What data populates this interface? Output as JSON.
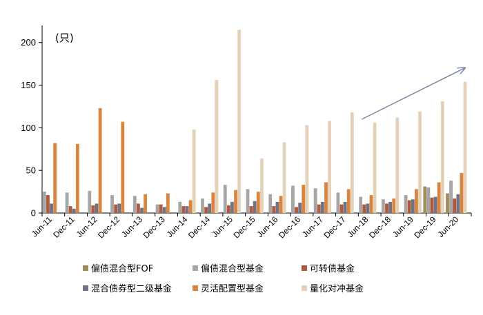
{
  "chart_data": {
    "type": "bar",
    "unit_label": "(只)",
    "categories": [
      "Jun-11",
      "Dec-11",
      "Jun-12",
      "Dec-12",
      "Jun-13",
      "Dec-13",
      "Jun-14",
      "Dec-14",
      "Jun-15",
      "Dec-15",
      "Jun-16",
      "Dec-16",
      "Jun-17",
      "Dec-17",
      "Jun-18",
      "Dec-18",
      "Jun-19",
      "Dec-19",
      "Jun-20"
    ],
    "ylim": [
      0,
      220
    ],
    "yticks": [
      0,
      50,
      100,
      150,
      200
    ],
    "grid": false,
    "legend_position": "bottom",
    "series": [
      {
        "name": "偏债混合型FOF",
        "color": "#a08c5a",
        "values": [
          0,
          0,
          0,
          0,
          0,
          0,
          0,
          0,
          0,
          0,
          0,
          0,
          0,
          0,
          0,
          0,
          0,
          31,
          23
        ]
      },
      {
        "name": "偏债混合型基金",
        "color": "#a6a6a6",
        "values": [
          25,
          24,
          26,
          21,
          20,
          10,
          13,
          17,
          33,
          28,
          22,
          32,
          29,
          24,
          19,
          16,
          21,
          30,
          38
        ]
      },
      {
        "name": "可转债基金",
        "color": "#b05a3c",
        "values": [
          21,
          8,
          9,
          10,
          11,
          10,
          8,
          7,
          9,
          8,
          8,
          7,
          10,
          10,
          10,
          11,
          15,
          18,
          17
        ]
      },
      {
        "name": "混合债券型二级基金",
        "color": "#6e7485",
        "values": [
          11,
          5,
          11,
          11,
          6,
          7,
          8,
          11,
          13,
          14,
          13,
          12,
          13,
          13,
          11,
          13,
          16,
          19,
          22
        ]
      },
      {
        "name": "灵活配置型基金",
        "color": "#d9843f",
        "values": [
          82,
          81,
          123,
          107,
          22,
          23,
          15,
          24,
          27,
          25,
          20,
          33,
          36,
          28,
          21,
          17,
          28,
          36,
          47
        ]
      },
      {
        "name": "量化对冲基金",
        "color": "#e3d1b8",
        "values": [
          0,
          0,
          0,
          0,
          0,
          0,
          98,
          156,
          215,
          64,
          83,
          103,
          108,
          118,
          106,
          112,
          119,
          131,
          154
        ]
      }
    ],
    "trend_arrow": {
      "from": [
        "Jun-18",
        110
      ],
      "to": [
        "Jun-20",
        170
      ]
    }
  }
}
